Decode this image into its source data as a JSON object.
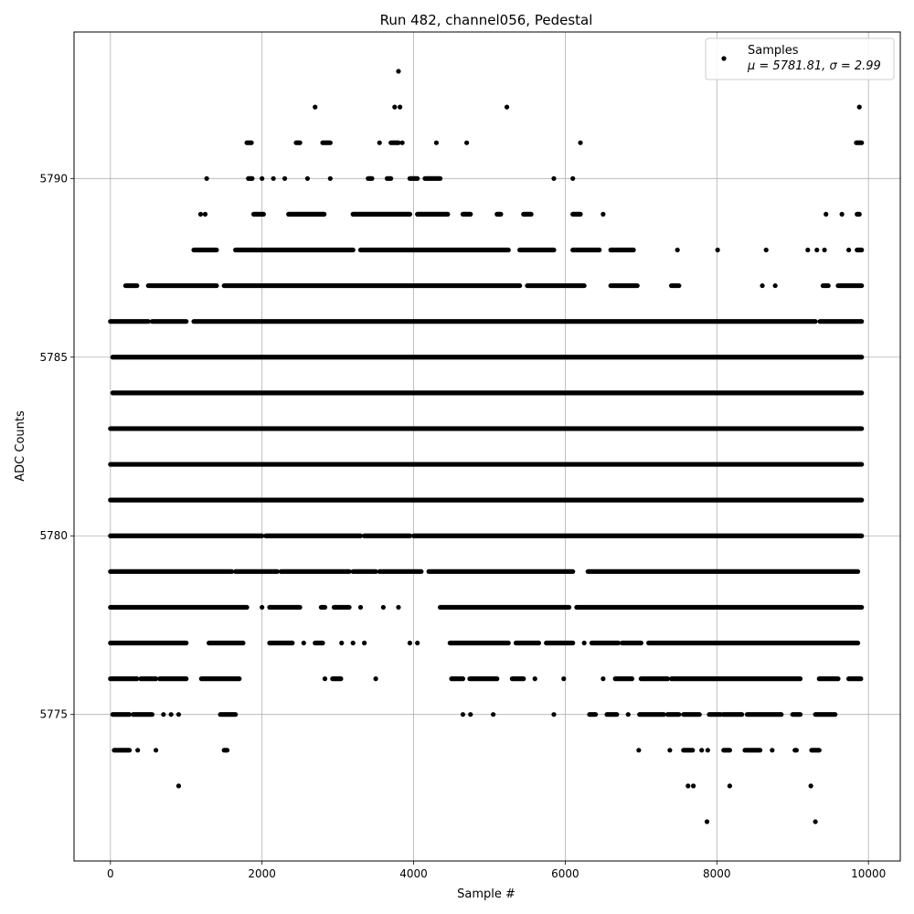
{
  "chart_data": {
    "type": "scatter",
    "title": "Run 482, channel056, Pedestal",
    "xlabel": "Sample #",
    "ylabel": "ADC Counts",
    "xlim": [
      -480,
      10420
    ],
    "ylim": [
      5770.9,
      5794.1
    ],
    "xticks": [
      0,
      2000,
      4000,
      6000,
      8000,
      10000
    ],
    "yticks": [
      5775,
      5780,
      5785,
      5790
    ],
    "grid": true,
    "legend_position": "top-right",
    "marker_color": "#000000",
    "grid_color": "#b0b0b0",
    "legend": {
      "series_label": "Samples",
      "stats_text": "μ = 5781.81, σ = 2.99"
    },
    "series": [
      {
        "name": "Samples",
        "x_range": [
          0,
          9910
        ],
        "level_coverage": [
          {
            "y": 5772,
            "x": [
              7870,
              9300
            ]
          },
          {
            "y": 5773,
            "x": [
              900,
              7620,
              7690,
              8170,
              9240
            ]
          },
          {
            "y": 5774,
            "x": [
              [
                50,
                250
              ],
              360,
              600,
              [
                1500,
                1540
              ],
              6970,
              7380,
              [
                7560,
                7680
              ],
              7800,
              7880,
              [
                8090,
                8170
              ],
              [
                8370,
                8570
              ],
              8730,
              [
                9030,
                9050
              ],
              [
                9250,
                9350
              ]
            ]
          },
          {
            "y": 5775,
            "x": [
              [
                30,
                250
              ],
              [
                300,
                550
              ],
              700,
              800,
              900,
              [
                1450,
                1650
              ],
              4650,
              4750,
              5050,
              5850,
              [
                6320,
                6400
              ],
              [
                6550,
                6680
              ],
              6830,
              [
                6980,
                7300
              ],
              [
                7350,
                7500
              ],
              [
                7560,
                7770
              ],
              [
                7900,
                8050
              ],
              [
                8080,
                8330
              ],
              [
                8400,
                8850
              ],
              [
                9000,
                9100
              ],
              [
                9300,
                9560
              ]
            ]
          },
          {
            "y": 5776,
            "x": [
              [
                0,
                350
              ],
              [
                400,
                600
              ],
              [
                650,
                1000
              ],
              [
                1200,
                1700
              ],
              2830,
              [
                2930,
                3040
              ],
              3500,
              [
                4500,
                4650
              ],
              [
                4740,
                5100
              ],
              [
                5300,
                5450
              ],
              5600,
              5980,
              6500,
              [
                6660,
                6880
              ],
              [
                7000,
                7350
              ],
              [
                7400,
                9100
              ],
              [
                9350,
                9600
              ],
              [
                9740,
                9900
              ]
            ]
          },
          {
            "y": 5777,
            "x": [
              [
                0,
                1000
              ],
              [
                1300,
                1750
              ],
              [
                2100,
                2400
              ],
              2550,
              [
                2700,
                2800
              ],
              3050,
              3200,
              3350,
              3950,
              4050,
              [
                4480,
                5250
              ],
              [
                5350,
                5650
              ],
              [
                5750,
                6100
              ],
              6250,
              [
                6350,
                6700
              ],
              [
                6750,
                7000
              ],
              [
                7100,
                9860
              ]
            ]
          },
          {
            "y": 5778,
            "x": [
              [
                0,
                1800
              ],
              2000,
              [
                2100,
                2500
              ],
              [
                2780,
                2830
              ],
              [
                2950,
                3150
              ],
              3300,
              3600,
              3800,
              [
                4350,
                6050
              ],
              [
                6150,
                9910
              ]
            ]
          },
          {
            "y": 5779,
            "x": [
              [
                0,
                1600
              ],
              [
                1650,
                2200
              ],
              [
                2250,
                3150
              ],
              [
                3200,
                3500
              ],
              [
                3550,
                4100
              ],
              [
                4200,
                6100
              ],
              [
                6300,
                9860
              ]
            ]
          },
          {
            "y": 5780,
            "x": [
              [
                0,
                2000
              ],
              [
                2050,
                3300
              ],
              [
                3350,
                3950
              ],
              [
                4000,
                9910
              ]
            ]
          },
          {
            "y": 5781,
            "x": [
              [
                0,
                9910
              ]
            ]
          },
          {
            "y": 5782,
            "x": [
              [
                0,
                9910
              ]
            ]
          },
          {
            "y": 5783,
            "x": [
              [
                0,
                9910
              ]
            ]
          },
          {
            "y": 5784,
            "x": [
              [
                30,
                9910
              ]
            ]
          },
          {
            "y": 5785,
            "x": [
              [
                30,
                9910
              ]
            ]
          },
          {
            "y": 5786,
            "x": [
              [
                0,
                500
              ],
              [
                550,
                1000
              ],
              [
                1100,
                9300
              ],
              [
                9360,
                9910
              ]
            ]
          },
          {
            "y": 5787,
            "x": [
              [
                200,
                350
              ],
              [
                500,
                1400
              ],
              [
                1500,
                5400
              ],
              [
                5500,
                6250
              ],
              [
                6600,
                6950
              ],
              [
                7400,
                7500
              ],
              8600,
              8770,
              [
                9400,
                9470
              ],
              [
                9600,
                9910
              ]
            ]
          },
          {
            "y": 5788,
            "x": [
              [
                1100,
                1400
              ],
              [
                1650,
                3200
              ],
              [
                3300,
                5250
              ],
              [
                5400,
                5850
              ],
              [
                6100,
                6450
              ],
              [
                6600,
                6900
              ],
              7480,
              8010,
              8650,
              9200,
              9320,
              9420,
              9740,
              [
                9850,
                9910
              ]
            ]
          },
          {
            "y": 5789,
            "x": [
              1190,
              1250,
              [
                1890,
                2020
              ],
              [
                2350,
                2820
              ],
              [
                3200,
                3950
              ],
              [
                4050,
                4450
              ],
              [
                4650,
                4750
              ],
              [
                5100,
                5150
              ],
              [
                5450,
                5550
              ],
              [
                6100,
                6200
              ],
              6500,
              9440,
              9650,
              [
                9850,
                9880
              ]
            ]
          },
          {
            "y": 5790,
            "x": [
              1270,
              [
                1820,
                1870
              ],
              2000,
              2150,
              2300,
              2600,
              2900,
              [
                3400,
                3450
              ],
              [
                3650,
                3700
              ],
              [
                3950,
                4050
              ],
              [
                4150,
                4350
              ],
              5850,
              6100
            ]
          },
          {
            "y": 5791,
            "x": [
              [
                1800,
                1860
              ],
              [
                2450,
                2500
              ],
              [
                2800,
                2900
              ],
              3550,
              [
                3700,
                3800
              ],
              3850,
              4300,
              4700,
              6200,
              [
                9840,
                9910
              ]
            ]
          },
          {
            "y": 5792,
            "x": [
              2700,
              3750,
              3820,
              5230,
              9880
            ]
          },
          {
            "y": 5793,
            "x": [
              3800
            ]
          }
        ]
      }
    ]
  }
}
